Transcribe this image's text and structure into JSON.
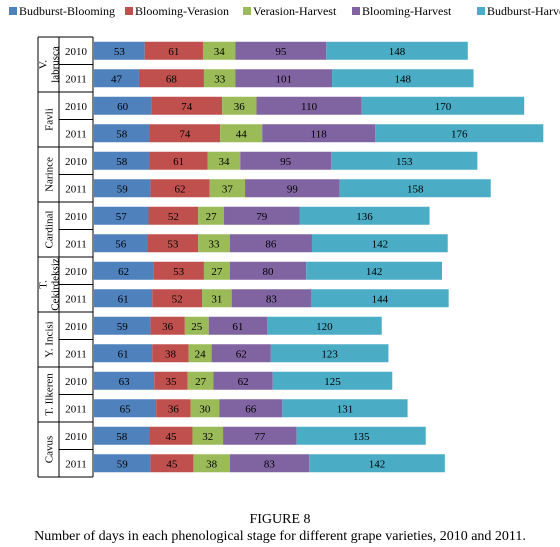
{
  "figure": {
    "label": "FIGURE 8",
    "caption": "Number of days in each phenological stage for different grape varieties, 2010 and 2011."
  },
  "chart_data": {
    "type": "bar",
    "orientation": "horizontal",
    "stacked": true,
    "legend_position": "top",
    "grid": false,
    "series": [
      {
        "name": "Budburst-Blooming",
        "color": "#4f81bd"
      },
      {
        "name": "Blooming-Verasion",
        "color": "#c0504d"
      },
      {
        "name": "Verasion-Harvest",
        "color": "#9bbb59"
      },
      {
        "name": "Blooming-Harvest",
        "color": "#8064a2"
      },
      {
        "name": "Budburst-Harvest",
        "color": "#4bacc6"
      }
    ],
    "groups": [
      {
        "variety": "V. labrusca",
        "rows": [
          {
            "year": "2010",
            "values": [
              53,
              61,
              34,
              95,
              148
            ]
          },
          {
            "year": "2011",
            "values": [
              47,
              68,
              33,
              101,
              148
            ]
          }
        ]
      },
      {
        "variety": "Favli",
        "rows": [
          {
            "year": "2010",
            "values": [
              60,
              74,
              36,
              110,
              170
            ]
          },
          {
            "year": "2011",
            "values": [
              58,
              74,
              44,
              118,
              176
            ]
          }
        ]
      },
      {
        "variety": "Narince",
        "rows": [
          {
            "year": "2010",
            "values": [
              58,
              61,
              34,
              95,
              153
            ]
          },
          {
            "year": "2011",
            "values": [
              59,
              62,
              37,
              99,
              158
            ]
          }
        ]
      },
      {
        "variety": "Cardinal",
        "rows": [
          {
            "year": "2010",
            "values": [
              57,
              52,
              27,
              79,
              136
            ]
          },
          {
            "year": "2011",
            "values": [
              56,
              53,
              33,
              86,
              142
            ]
          }
        ]
      },
      {
        "variety": "T. Cekirdeksiz",
        "rows": [
          {
            "year": "2010",
            "values": [
              62,
              53,
              27,
              80,
              142
            ]
          },
          {
            "year": "2011",
            "values": [
              61,
              52,
              31,
              83,
              144
            ]
          }
        ]
      },
      {
        "variety": "Y. Incisi",
        "rows": [
          {
            "year": "2010",
            "values": [
              59,
              36,
              25,
              61,
              120
            ]
          },
          {
            "year": "2011",
            "values": [
              61,
              38,
              24,
              62,
              123
            ]
          }
        ]
      },
      {
        "variety": "T. Ilkeren",
        "rows": [
          {
            "year": "2010",
            "values": [
              63,
              35,
              27,
              62,
              125
            ]
          },
          {
            "year": "2011",
            "values": [
              65,
              36,
              30,
              66,
              131
            ]
          }
        ]
      },
      {
        "variety": "Cavus",
        "rows": [
          {
            "year": "2010",
            "values": [
              58,
              45,
              32,
              77,
              135
            ]
          },
          {
            "year": "2011",
            "values": [
              59,
              45,
              38,
              83,
              142
            ]
          }
        ]
      }
    ]
  }
}
